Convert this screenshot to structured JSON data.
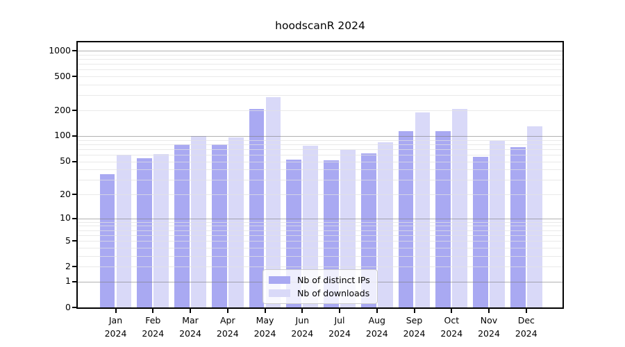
{
  "title": "hoodscanR 2024",
  "chart_data": {
    "type": "bar",
    "title": "hoodscanR 2024",
    "categories": [
      "Jan",
      "Feb",
      "Mar",
      "Apr",
      "May",
      "Jun",
      "Jul",
      "Aug",
      "Sep",
      "Oct",
      "Nov",
      "Dec"
    ],
    "category_year": "2024",
    "series": [
      {
        "name": "Nb of distinct IPs",
        "color": "#a9a9f2",
        "values": [
          35,
          54,
          80,
          79,
          208,
          52,
          51,
          62,
          113,
          114,
          57,
          74
        ]
      },
      {
        "name": "Nb of downloads",
        "color": "#d9d9f8",
        "values": [
          60,
          61,
          100,
          97,
          287,
          77,
          69,
          85,
          191,
          206,
          87,
          131
        ]
      }
    ],
    "y_scale": "log1p",
    "y_ticks": [
      0,
      1,
      2,
      5,
      10,
      20,
      50,
      100,
      200,
      500,
      1000
    ],
    "ylim": [
      0,
      1253
    ],
    "grid": "horizontal, minor log gridlines, drawn over bars",
    "legend_position": "bottom-center",
    "xlabel": "",
    "ylabel": ""
  },
  "colors": {
    "axis": "#000000",
    "background": "#ffffff",
    "bar_distinct_ips": "#a9a9f2",
    "bar_downloads": "#d9d9f8",
    "major_grid": "#b3b3b3",
    "minor_grid": "#ececec"
  }
}
